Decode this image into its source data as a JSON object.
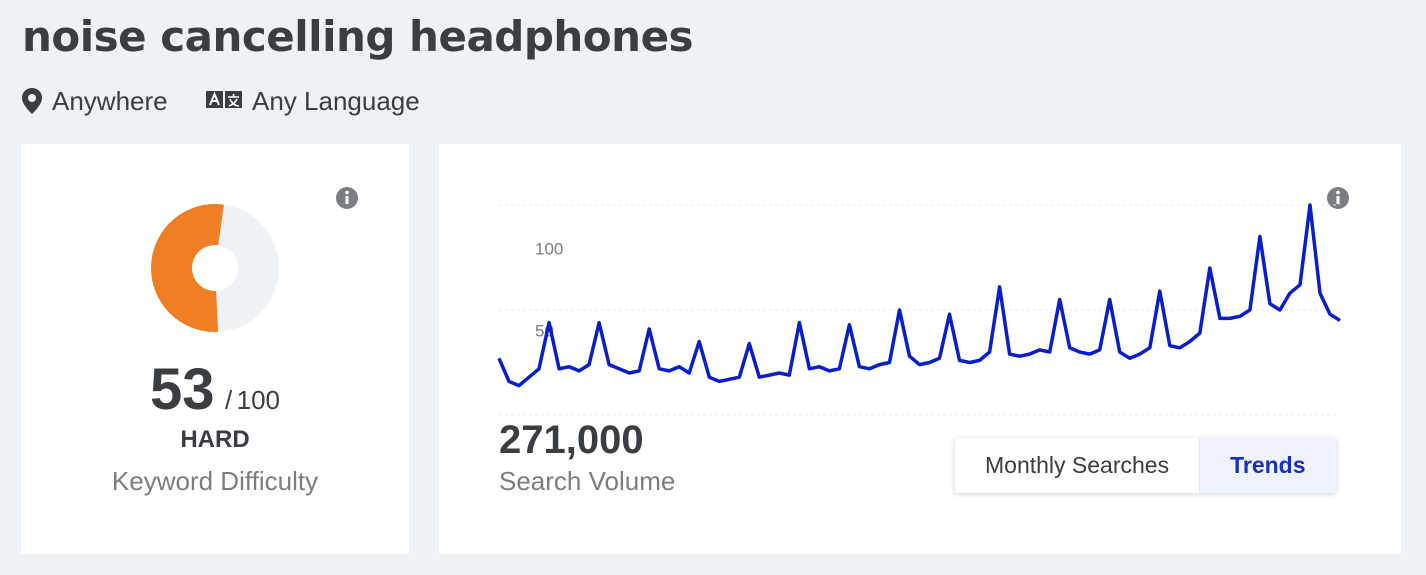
{
  "header": {
    "title": "noise cancelling headphones",
    "location": "Anywhere",
    "language": "Any Language"
  },
  "difficulty": {
    "score": 53,
    "separator": "/",
    "max": 100,
    "level": "HARD",
    "label": "Keyword Difficulty",
    "color": "#f07f23",
    "rest_color": "#eef1f5"
  },
  "volume": {
    "value": "271,000",
    "label": "Search Volume"
  },
  "tabs": [
    {
      "label": "Monthly Searches",
      "active": false
    },
    {
      "label": "Trends",
      "active": true
    }
  ],
  "chart_data": {
    "type": "line",
    "color": "#0a1ec8",
    "ylim": [
      0,
      100
    ],
    "yticks": [
      50,
      100
    ],
    "grid": true,
    "values": [
      27,
      16,
      14,
      18,
      22,
      44,
      22,
      23,
      21,
      24,
      44,
      24,
      22,
      20,
      21,
      41,
      22,
      21,
      23,
      20,
      35,
      18,
      16,
      17,
      18,
      34,
      18,
      19,
      20,
      19,
      44,
      22,
      23,
      21,
      22,
      43,
      23,
      22,
      24,
      25,
      50,
      28,
      24,
      25,
      27,
      48,
      26,
      25,
      26,
      30,
      61,
      29,
      28,
      29,
      31,
      30,
      55,
      32,
      30,
      29,
      31,
      55,
      30,
      27,
      29,
      32,
      59,
      33,
      32,
      35,
      39,
      70,
      46,
      46,
      47,
      50,
      85,
      53,
      50,
      58,
      62,
      100,
      58,
      48,
      45
    ]
  }
}
